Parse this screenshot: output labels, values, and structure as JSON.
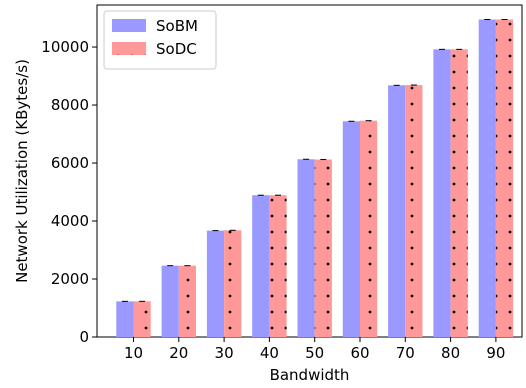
{
  "chart_data": {
    "type": "bar",
    "title": "",
    "xlabel": "Bandwidth",
    "ylabel": "Network Utilization (KBytes/s)",
    "categories": [
      "10",
      "20",
      "30",
      "40",
      "50",
      "60",
      "70",
      "80",
      "90"
    ],
    "series": [
      {
        "name": "SoBM",
        "values": [
          1230,
          2460,
          3670,
          4890,
          6130,
          7440,
          8680,
          9920,
          10950
        ],
        "color": "#9999ff",
        "pattern": "solid"
      },
      {
        "name": "SoDC",
        "values": [
          1230,
          2460,
          3680,
          4890,
          6120,
          7460,
          8690,
          9920,
          10950
        ],
        "color": "#ff9999",
        "pattern": "dots"
      }
    ],
    "ylim": [
      0,
      11450
    ],
    "yticks": [
      0,
      2000,
      4000,
      6000,
      8000,
      10000
    ],
    "grid": false,
    "legend_position": "top-left"
  }
}
